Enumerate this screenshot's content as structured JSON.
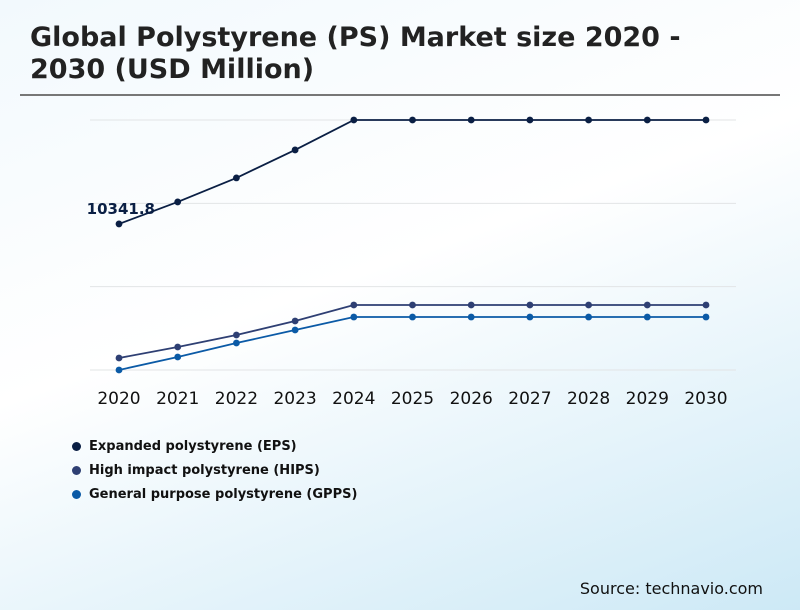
{
  "title": "Global Polystyrene (PS) Market size 2020 - 2030 (USD Million)",
  "source": "Source: technavio.com",
  "chart_data": {
    "type": "line",
    "title": "Global Polystyrene (PS) Market size 2020 - 2030 (USD Million)",
    "categories": [
      "2020",
      "2021",
      "2022",
      "2023",
      "2024",
      "2025",
      "2026",
      "2027",
      "2028",
      "2029",
      "2030"
    ],
    "ylim": [
      0,
      17700
    ],
    "grid": true,
    "legend_position": "bottom-left",
    "annotation": "10341.8",
    "series": [
      {
        "name": "Expanded polystyrene (EPS)",
        "color": "#0a1f44",
        "values": [
          10341.8,
          11900,
          13600,
          15580,
          17700,
          17700,
          17700,
          17700,
          17700,
          17700,
          17700
        ]
      },
      {
        "name": "High impact polystyrene (HIPS)",
        "color": "#2e3f73",
        "values": [
          850,
          1630,
          2480,
          3470,
          4600,
          4600,
          4600,
          4600,
          4600,
          4600,
          4600
        ]
      },
      {
        "name": "General purpose polystyrene (GPPS)",
        "color": "#0b5aa6",
        "values": [
          0,
          920,
          1910,
          2830,
          3750,
          3750,
          3750,
          3750,
          3750,
          3750,
          3750
        ]
      }
    ]
  }
}
